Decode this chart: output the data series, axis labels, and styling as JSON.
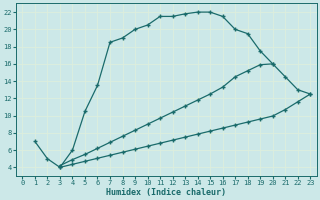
{
  "title": "",
  "xlabel": "Humidex (Indice chaleur)",
  "bg_color": "#cce8e8",
  "grid_color": "#b0d0d0",
  "line_color": "#1a6b6b",
  "xlim": [
    -0.5,
    23.5
  ],
  "ylim": [
    3,
    23
  ],
  "xticks": [
    0,
    1,
    2,
    3,
    4,
    5,
    6,
    7,
    8,
    9,
    10,
    11,
    12,
    13,
    14,
    15,
    16,
    17,
    18,
    19,
    20,
    21,
    22,
    23
  ],
  "yticks": [
    4,
    6,
    8,
    10,
    12,
    14,
    16,
    18,
    20,
    22
  ],
  "line1_x": [
    1,
    2,
    3,
    4,
    5,
    6,
    7,
    8,
    9,
    10,
    11,
    12,
    13,
    14,
    15,
    16,
    17,
    18,
    19,
    20,
    21,
    22,
    23
  ],
  "line1_y": [
    7,
    5,
    4,
    6,
    10.5,
    13.5,
    18.5,
    19.0,
    20.0,
    20.5,
    21.5,
    21.5,
    21.8,
    22.0,
    22.0,
    21.5,
    20.0,
    19.5,
    17.5,
    16.0,
    14.5,
    13.0,
    12.5
  ],
  "line2_x": [
    3,
    4,
    5,
    6,
    7,
    8,
    9,
    10,
    11,
    12,
    13,
    14,
    15,
    16,
    17,
    18,
    19,
    20
  ],
  "line2_y": [
    4.2,
    4.9,
    5.5,
    6.2,
    6.9,
    7.6,
    8.3,
    9.0,
    9.7,
    10.4,
    11.1,
    11.8,
    12.5,
    13.3,
    14.5,
    15.2,
    15.9,
    16.0
  ],
  "line3_x": [
    3,
    4,
    5,
    6,
    7,
    8,
    9,
    10,
    11,
    12,
    13,
    14,
    15,
    16,
    17,
    18,
    19,
    20,
    21,
    22,
    23
  ],
  "line3_y": [
    4.0,
    4.35,
    4.7,
    5.05,
    5.4,
    5.75,
    6.1,
    6.45,
    6.8,
    7.15,
    7.5,
    7.85,
    8.2,
    8.55,
    8.9,
    9.25,
    9.6,
    9.95,
    10.7,
    11.6,
    12.5
  ],
  "marker": "+",
  "markersize": 3.5,
  "linewidth": 0.9
}
